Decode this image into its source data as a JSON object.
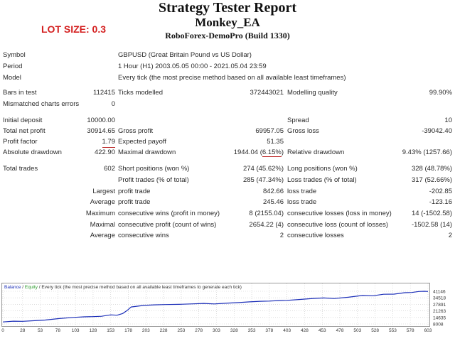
{
  "header": {
    "title": "Strategy Tester Report",
    "ea_name": "Monkey_EA",
    "server": "RoboForex-DemoPro (Build 1330)",
    "lot_size": "LOT SIZE: 0.3"
  },
  "info": {
    "symbol_label": "Symbol",
    "symbol_value": "GBPUSD (Great Britain Pound vs US Dollar)",
    "period_label": "Period",
    "period_value": "1 Hour (H1) 2003.05.05 00:00 - 2021.05.04 23:59",
    "model_label": "Model",
    "model_value": "Every tick (the most precise method based on all available least timeframes)"
  },
  "stats": {
    "bars_label": "Bars in test",
    "bars_value": "112415",
    "ticks_label": "Ticks modelled",
    "ticks_value": "372443021",
    "quality_label": "Modelling quality",
    "quality_value": "99.90%",
    "mismatch_label": "Mismatched charts errors",
    "mismatch_value": "0",
    "deposit_label": "Initial deposit",
    "deposit_value": "10000.00",
    "spread_label": "Spread",
    "spread_value": "10",
    "netprofit_label": "Total net profit",
    "netprofit_value": "30914.65",
    "grossprofit_label": "Gross profit",
    "grossprofit_value": "69957.05",
    "grossloss_label": "Gross loss",
    "grossloss_value": "-39042.40",
    "pf_label": "Profit factor",
    "pf_value": "1.79",
    "payoff_label": "Expected payoff",
    "payoff_value": "51.35",
    "absdd_label": "Absolute drawdown",
    "absdd_value": "422.90",
    "maxdd_label": "Maximal drawdown",
    "maxdd_value_a": "1944.04 (",
    "maxdd_value_b": "6.15%",
    "maxdd_value_c": ")",
    "reldd_label": "Relative drawdown",
    "reldd_value": "9.43% (1257.66)",
    "trades_label": "Total trades",
    "trades_value": "602",
    "short_label": "Short positions (won %)",
    "short_value": "274 (45.62%)",
    "long_label": "Long positions (won %)",
    "long_value": "328 (48.78%)",
    "pt_label": "Profit trades (% of total)",
    "pt_value": "285 (47.34%)",
    "lt_label": "Loss trades (% of total)",
    "lt_value": "317 (52.66%)",
    "largest_label": "Largest",
    "largest_pt_label": "profit trade",
    "largest_pt_value": "842.66",
    "largest_lt_label": "loss trade",
    "largest_lt_value": "-202.85",
    "average_label": "Average",
    "average_pt_label": "profit trade",
    "average_pt_value": "245.46",
    "average_lt_label": "loss trade",
    "average_lt_value": "-123.16",
    "maximum_label": "Maximum",
    "max_cw_label": "consecutive wins (profit in money)",
    "max_cw_value": "8 (2155.04)",
    "max_cl_label": "consecutive losses (loss in money)",
    "max_cl_value": "14 (-1502.58)",
    "maximal_label": "Maximal",
    "mal_cp_label": "consecutive profit (count of wins)",
    "mal_cp_value": "2654.22 (4)",
    "mal_cl_label": "consecutive loss (count of losses)",
    "mal_cl_value": "-1502.58 (14)",
    "avg2_label": "Average",
    "avg_cw_label": "consecutive wins",
    "avg_cw_value": "2",
    "avg_cl_label": "consecutive losses",
    "avg_cl_value": "2"
  },
  "legend": {
    "balance": "Balance",
    "sep1": " / ",
    "equity": "Equity",
    "rest": " / Every tick (the most precise method based on all available least timeframes to generate each tick)"
  },
  "colors": {
    "balance": "#1c2fb8",
    "equity": "#2a9a2a",
    "lot": "#d42020",
    "grid": "#c8c8c8"
  },
  "chart_data": {
    "type": "line",
    "series": [
      {
        "name": "Balance",
        "x": [
          0,
          15,
          28,
          45,
          60,
          80,
          100,
          115,
          128,
          140,
          153,
          162,
          170,
          176,
          182,
          200,
          215,
          230,
          250,
          270,
          285,
          300,
          320,
          335,
          350,
          365,
          378,
          392,
          403,
          420,
          440,
          455,
          470,
          490,
          510,
          525,
          540,
          555,
          570,
          580,
          590,
          598,
          603
        ],
        "values": [
          10000,
          10800,
          10700,
          11300,
          12000,
          13500,
          14600,
          15200,
          15400,
          15800,
          17200,
          16900,
          18600,
          21500,
          25200,
          26800,
          27400,
          27700,
          27900,
          28400,
          28800,
          28300,
          29200,
          29700,
          30400,
          31000,
          31200,
          31700,
          31900,
          32800,
          33900,
          34400,
          33800,
          35100,
          36900,
          36600,
          38100,
          38300,
          39700,
          39900,
          40900,
          41146,
          40914
        ]
      }
    ],
    "xticks": [
      "0",
      "28",
      "53",
      "78",
      "103",
      "128",
      "153",
      "178",
      "203",
      "228",
      "253",
      "278",
      "303",
      "328",
      "353",
      "378",
      "403",
      "428",
      "453",
      "478",
      "503",
      "528",
      "553",
      "578",
      "603"
    ],
    "yticks": [
      "41146",
      "34518",
      "27891",
      "21263",
      "14635",
      "8008"
    ],
    "xlim": [
      0,
      603
    ],
    "ylim": [
      8008,
      41146
    ],
    "grid": true
  }
}
